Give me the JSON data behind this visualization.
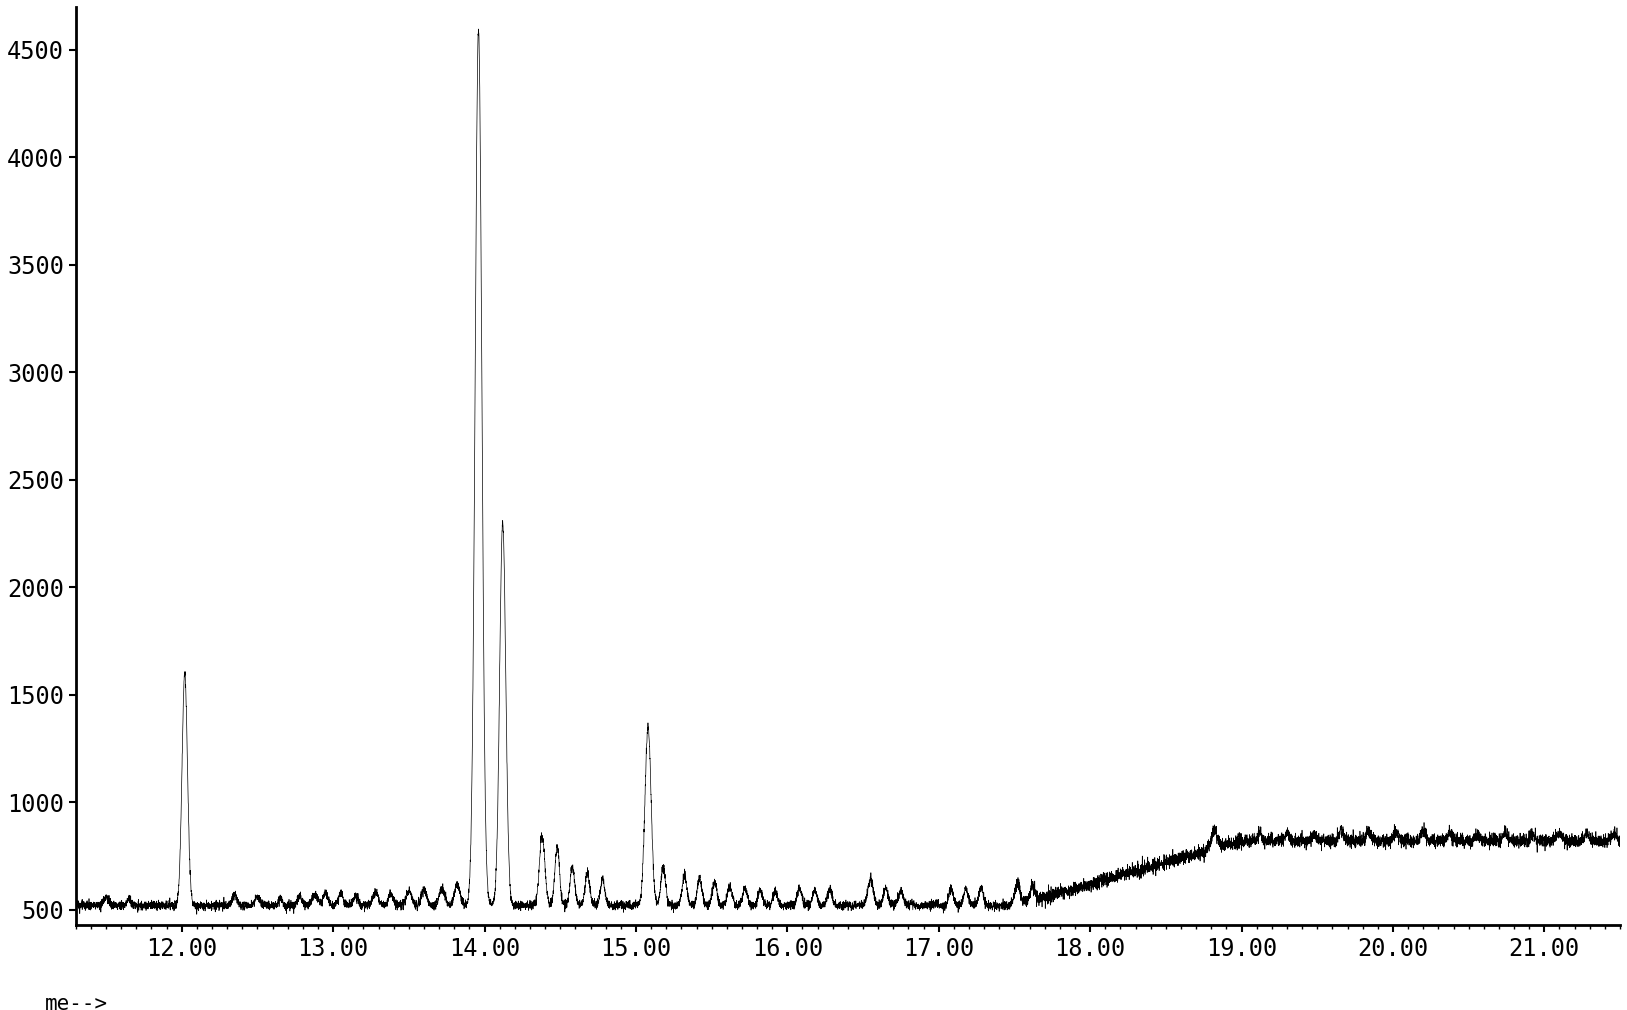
{
  "xlim": [
    11.3,
    21.5
  ],
  "ylim": [
    430,
    4700
  ],
  "xticks": [
    12.0,
    13.0,
    14.0,
    15.0,
    16.0,
    17.0,
    18.0,
    19.0,
    20.0,
    21.0
  ],
  "yticks": [
    500,
    1000,
    1500,
    2000,
    2500,
    3000,
    3500,
    4000,
    4500
  ],
  "xlabel": "me-->",
  "background_color": "#ffffff",
  "line_color": "#000000",
  "tick_label_fontsize": 17,
  "xlabel_fontsize": 15
}
